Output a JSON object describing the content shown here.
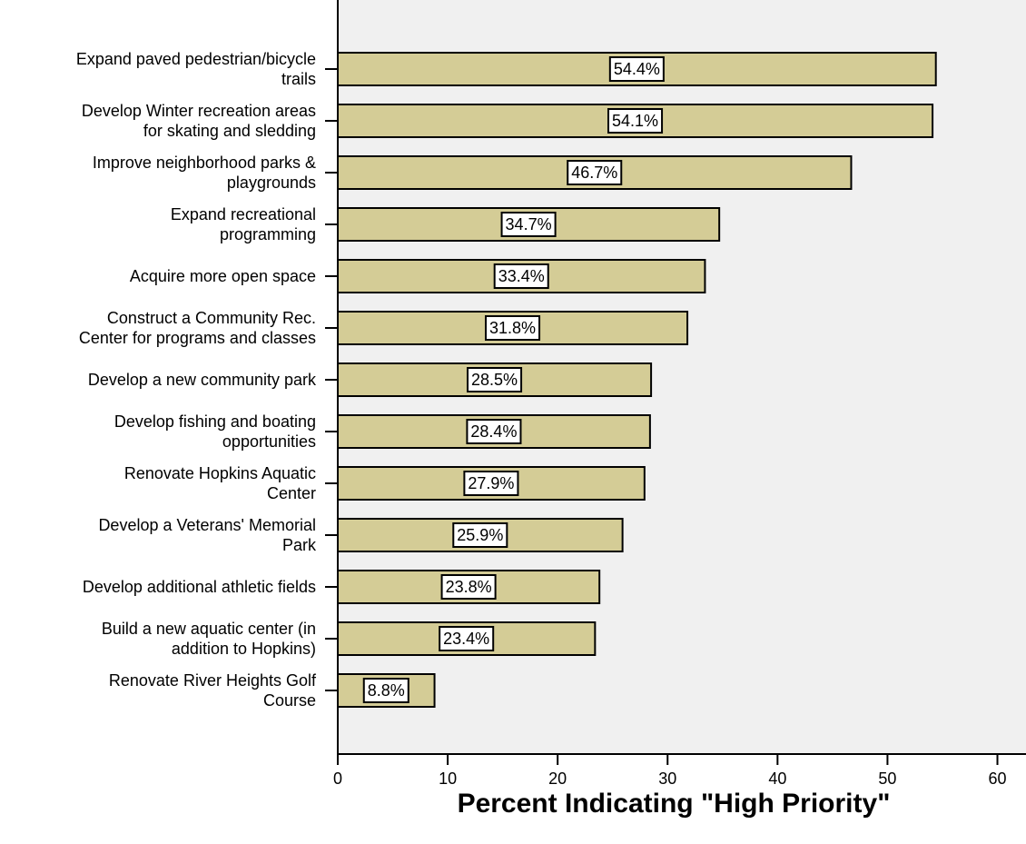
{
  "chart_data": {
    "type": "bar",
    "orientation": "horizontal",
    "categories": [
      "Expand paved pedestrian/bicycle\ntrails",
      "Develop Winter recreation areas\nfor skating and sledding",
      "Improve neighborhood parks &\nplaygrounds",
      "Expand recreational\nprogramming",
      "Acquire more open space",
      "Construct a Community Rec.\nCenter for programs and classes",
      "Develop a new community park",
      "Develop fishing and boating\nopportunities",
      "Renovate Hopkins Aquatic\nCenter",
      "Develop a Veterans' Memorial\nPark",
      "Develop additional athletic fields",
      "Build a new aquatic center (in\naddition to Hopkins)",
      "Renovate River Heights Golf\nCourse"
    ],
    "values": [
      54.4,
      54.1,
      46.7,
      34.7,
      33.4,
      31.8,
      28.5,
      28.4,
      27.9,
      25.9,
      23.8,
      23.4,
      8.8
    ],
    "value_labels": [
      "54.4%",
      "54.1%",
      "46.7%",
      "34.7%",
      "33.4%",
      "31.8%",
      "28.5%",
      "28.4%",
      "27.9%",
      "25.9%",
      "23.8%",
      "23.4%",
      "8.8%"
    ],
    "color": "#d4cc96",
    "xlabel": "Percent Indicating \"High Priority\"",
    "xlim": [
      0,
      62.6
    ],
    "xticks": [
      0,
      10,
      20,
      30,
      40,
      50,
      60
    ]
  }
}
